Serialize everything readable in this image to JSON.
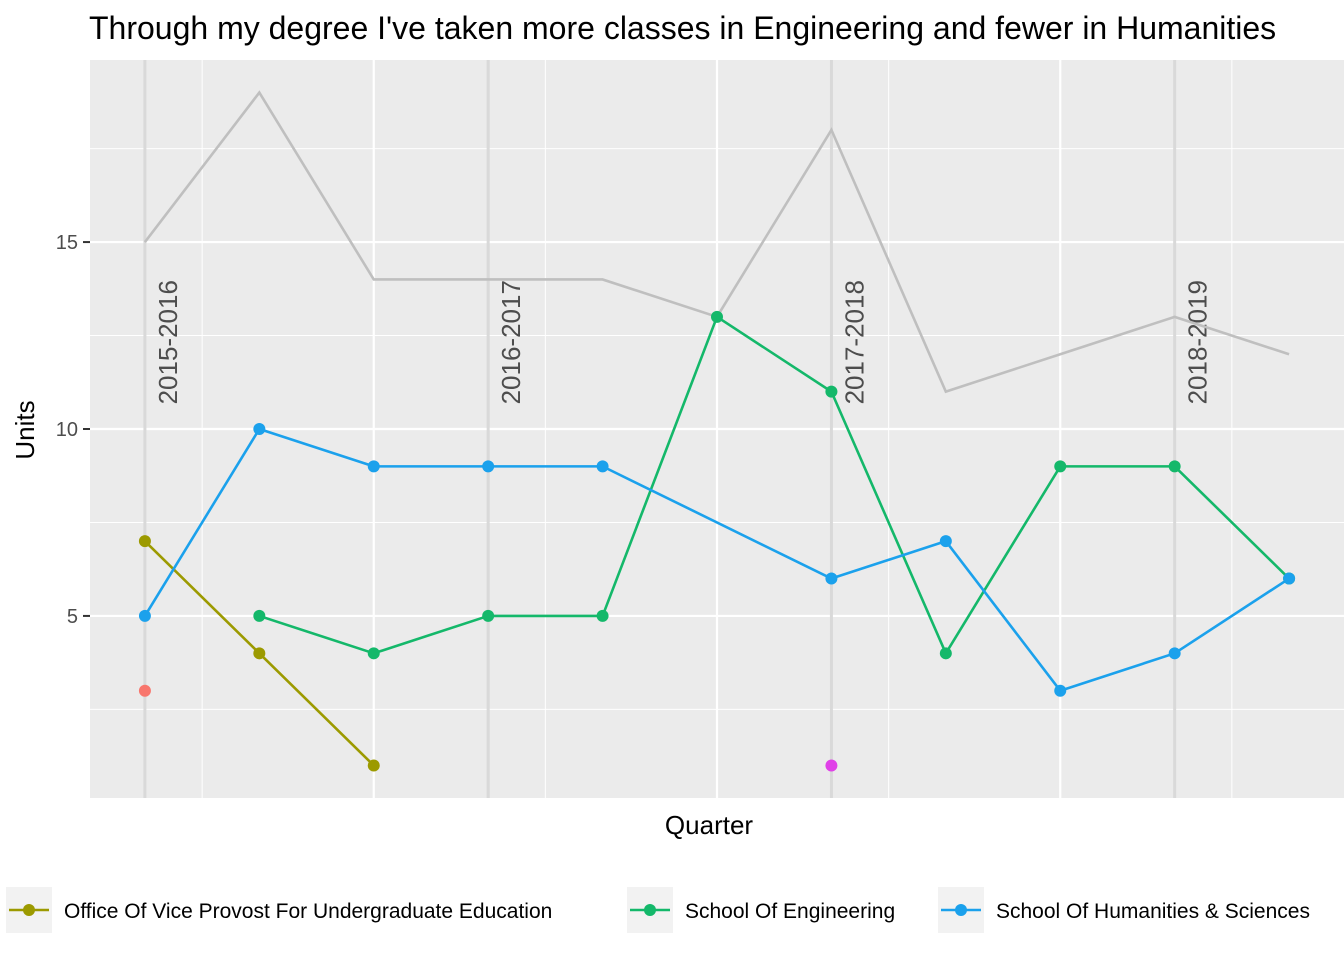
{
  "chart_data": {
    "type": "line",
    "title": "Through my degree I've taken more classes in Engineering and fewer in Humanities",
    "xlabel": "Quarter",
    "ylabel": "Units",
    "x": [
      1,
      2,
      3,
      4,
      5,
      6,
      7,
      8,
      9,
      10,
      11
    ],
    "xlim": [
      0.52,
      11.48
    ],
    "ylim": [
      0.13,
      19.87
    ],
    "yticks": [
      5,
      10,
      15
    ],
    "x_gridlines_major": [
      3,
      6,
      9
    ],
    "x_gridlines_minor": [
      1.5,
      4.5,
      7.5,
      10.5
    ],
    "grid": true,
    "legend_position": "bottom",
    "year_markers": [
      {
        "x": 1,
        "label": "2015-2016"
      },
      {
        "x": 4,
        "label": "2016-2017"
      },
      {
        "x": 7,
        "label": "2017-2018"
      },
      {
        "x": 10,
        "label": "2018-2019"
      }
    ],
    "total_line": {
      "color": "#bfbfbf",
      "x": [
        1,
        2,
        3,
        4,
        5,
        6,
        7,
        8,
        9,
        10,
        11
      ],
      "values": [
        15,
        19,
        14,
        14,
        14,
        13,
        18,
        11,
        12,
        13,
        12
      ]
    },
    "series": [
      {
        "name": "Office Of Vice Provost For Undergraduate Education",
        "color": "#9c9a00",
        "x": [
          1,
          2,
          3
        ],
        "values": [
          7,
          4,
          1
        ]
      },
      {
        "name": "School Of Engineering",
        "color": "#14b86a",
        "x": [
          2,
          3,
          4,
          5,
          6,
          7,
          8,
          9,
          10,
          11
        ],
        "values": [
          5,
          4,
          5,
          5,
          13,
          11,
          4,
          9,
          9,
          6
        ]
      },
      {
        "name": "School Of Humanities & Sciences",
        "color": "#1ba1ec",
        "x": [
          1,
          2,
          3,
          4,
          5,
          7,
          8,
          9,
          10,
          11
        ],
        "values": [
          5,
          10,
          9,
          9,
          9,
          6,
          7,
          3,
          4,
          6
        ]
      }
    ],
    "extra_points": [
      {
        "x": 1,
        "value": 3,
        "color": "#f8766d"
      },
      {
        "x": 7,
        "value": 1,
        "color": "#e041e8"
      }
    ]
  }
}
